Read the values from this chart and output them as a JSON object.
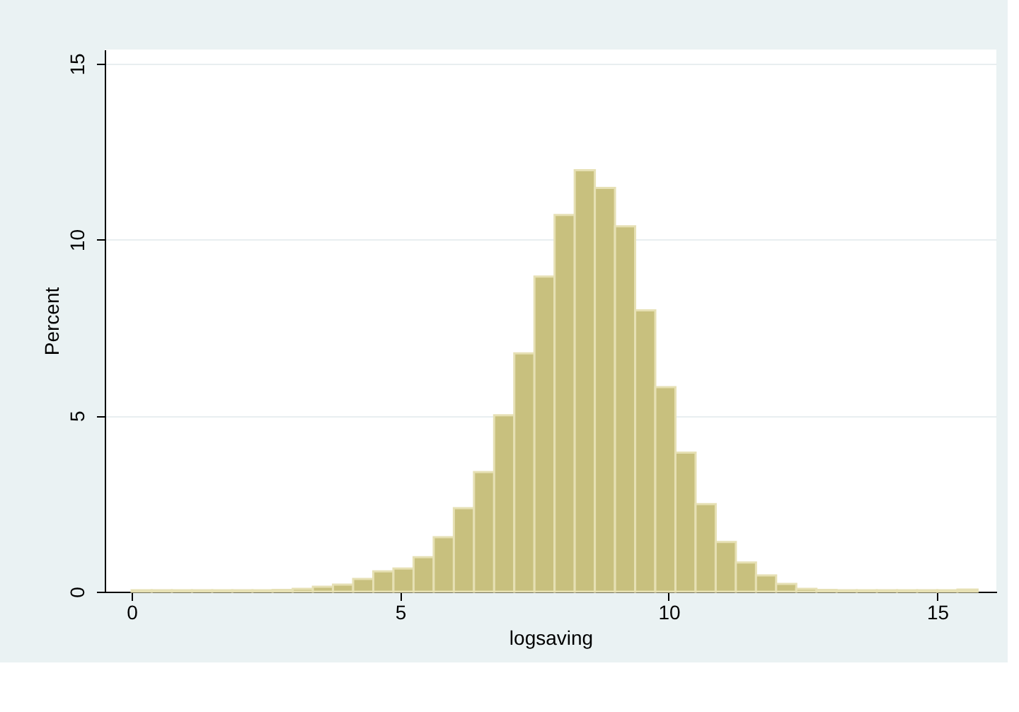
{
  "chart_data": {
    "type": "histogram",
    "xlabel": "logsaving",
    "ylabel": "Percent",
    "bins": [
      0,
      0.375,
      0.75,
      1.125,
      1.5,
      1.875,
      2.25,
      2.625,
      3,
      3.375,
      3.75,
      4.125,
      4.5,
      4.875,
      5.25,
      5.625,
      6,
      6.375,
      6.75,
      7.125,
      7.5,
      7.875,
      8.25,
      8.625,
      9,
      9.375,
      9.75,
      10.125,
      10.5,
      10.875,
      11.25,
      11.625,
      12,
      12.375,
      12.75,
      13.125,
      13.5,
      13.875,
      14.25,
      14.625,
      15,
      15.375,
      15.75
    ],
    "values": [
      0.04,
      0.04,
      0.04,
      0.04,
      0.04,
      0.04,
      0.04,
      0.05,
      0.08,
      0.14,
      0.2,
      0.36,
      0.58,
      0.66,
      0.98,
      1.55,
      2.37,
      3.4,
      5.01,
      6.77,
      8.95,
      10.7,
      11.97,
      11.47,
      10.38,
      7.99,
      5.81,
      3.95,
      2.49,
      1.41,
      0.83,
      0.46,
      0.22,
      0.08,
      0.05,
      0.04,
      0.04,
      0.04,
      0.04,
      0.04,
      0.04,
      0.06
    ],
    "color": "#c8c07e",
    "xlim": [
      -0.5,
      16.1
    ],
    "ylim": [
      0,
      15.4
    ],
    "xticks": [
      0,
      5,
      10,
      15
    ],
    "yticks": [
      0,
      5,
      10,
      15
    ],
    "grid": "y"
  }
}
